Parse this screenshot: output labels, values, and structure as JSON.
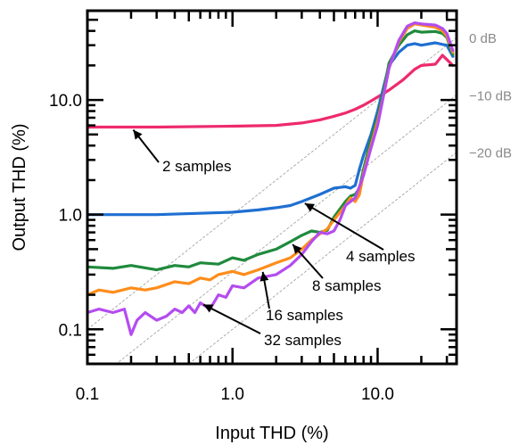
{
  "chart_data": {
    "type": "line",
    "title": "",
    "xlabel": "Input THD (%)",
    "ylabel": "Output THD (%)",
    "x_scale": "log",
    "y_scale": "log",
    "xlim": [
      0.1,
      35
    ],
    "ylim": [
      0.05,
      60
    ],
    "x_ticks": [
      {
        "value": 0.1,
        "label": "0.1"
      },
      {
        "value": 1,
        "label": "1.0"
      },
      {
        "value": 10,
        "label": "10.0"
      }
    ],
    "y_ticks": [
      {
        "value": 0.1,
        "label": "0.1"
      },
      {
        "value": 1,
        "label": "1.0"
      },
      {
        "value": 10,
        "label": "10.0"
      }
    ],
    "grid": false,
    "reference_lines": [
      {
        "label": "0 dB",
        "ratio": 1,
        "color": "#9a9a9a"
      },
      {
        "label": "−10 dB",
        "ratio": 0.316,
        "color": "#9a9a9a"
      },
      {
        "label": "−20 dB",
        "ratio": 0.1,
        "color": "#9a9a9a"
      }
    ],
    "series": [
      {
        "name": "2 samples",
        "color": "#ee2a6e",
        "x": [
          0.1,
          0.3,
          1,
          2,
          3,
          4,
          5,
          6,
          7,
          8,
          9,
          10,
          12,
          15,
          18,
          20,
          25,
          28,
          30,
          33
        ],
        "y": [
          5.8,
          5.8,
          5.9,
          6.0,
          6.3,
          6.7,
          7.2,
          7.7,
          8.3,
          9.0,
          9.8,
          10.6,
          12.2,
          15.0,
          18.5,
          20.0,
          20.5,
          24.5,
          22.5,
          20.0
        ]
      },
      {
        "name": "4 samples",
        "color": "#1f6fd1",
        "x": [
          0.1,
          0.3,
          1,
          1.5,
          2,
          2.5,
          3,
          4,
          5,
          6,
          6.5,
          7,
          7.5,
          8,
          9,
          10,
          11,
          12,
          14,
          16,
          18,
          20,
          25,
          28,
          30,
          33
        ],
        "y": [
          1.0,
          1.0,
          1.05,
          1.1,
          1.15,
          1.2,
          1.3,
          1.5,
          1.7,
          1.75,
          1.7,
          1.8,
          2.5,
          3.3,
          5.0,
          8.0,
          13.0,
          20.0,
          26.0,
          30.0,
          31.0,
          30.0,
          31.5,
          30.5,
          30.0,
          24.0
        ]
      },
      {
        "name": "8 samples",
        "color": "#1f8a3c",
        "x": [
          0.1,
          0.15,
          0.2,
          0.3,
          0.4,
          0.5,
          0.6,
          0.8,
          1,
          1.2,
          1.5,
          2,
          2.5,
          3,
          3.5,
          4,
          4.5,
          5,
          6,
          6.5,
          7,
          7.5,
          8,
          9,
          10,
          11,
          12,
          14,
          16,
          18,
          20,
          25,
          28,
          30,
          33
        ],
        "y": [
          0.35,
          0.34,
          0.36,
          0.33,
          0.36,
          0.35,
          0.38,
          0.37,
          0.42,
          0.4,
          0.45,
          0.5,
          0.58,
          0.66,
          0.72,
          0.7,
          0.73,
          0.95,
          1.3,
          1.45,
          1.5,
          1.7,
          2.5,
          4.5,
          7.0,
          12.0,
          21.0,
          30.0,
          37.0,
          40.0,
          39.0,
          39.5,
          38.0,
          35.0,
          25.0
        ]
      },
      {
        "name": "16 samples",
        "color": "#ff8c1a",
        "x": [
          0.1,
          0.12,
          0.15,
          0.2,
          0.25,
          0.3,
          0.4,
          0.5,
          0.6,
          0.7,
          0.8,
          1,
          1.2,
          1.5,
          2,
          2.5,
          3,
          3.5,
          4,
          4.5,
          5,
          6,
          6.5,
          7,
          7.5,
          8,
          9,
          10,
          11,
          12,
          14,
          16,
          18,
          20,
          25,
          28,
          30,
          33
        ],
        "y": [
          0.2,
          0.22,
          0.21,
          0.23,
          0.22,
          0.23,
          0.26,
          0.25,
          0.28,
          0.27,
          0.3,
          0.32,
          0.3,
          0.33,
          0.38,
          0.42,
          0.5,
          0.6,
          0.68,
          0.75,
          0.9,
          1.2,
          1.4,
          1.3,
          1.5,
          2.3,
          4.0,
          6.5,
          11.0,
          19.0,
          32.0,
          42.0,
          46.0,
          45.0,
          43.0,
          40.0,
          36.0,
          26.0
        ]
      },
      {
        "name": "32 samples",
        "color": "#b44cf0",
        "x": [
          0.1,
          0.12,
          0.15,
          0.18,
          0.2,
          0.22,
          0.25,
          0.3,
          0.35,
          0.4,
          0.45,
          0.5,
          0.55,
          0.6,
          0.7,
          0.8,
          0.9,
          1,
          1.2,
          1.5,
          2,
          2.5,
          3,
          3.5,
          4,
          4.5,
          5,
          5.5,
          6,
          7,
          8,
          9,
          10,
          11,
          12,
          14,
          16,
          18,
          20,
          25,
          28,
          30,
          33
        ],
        "y": [
          0.14,
          0.15,
          0.14,
          0.15,
          0.09,
          0.12,
          0.14,
          0.12,
          0.13,
          0.15,
          0.14,
          0.16,
          0.14,
          0.17,
          0.15,
          0.2,
          0.19,
          0.24,
          0.23,
          0.28,
          0.3,
          0.36,
          0.45,
          0.58,
          0.7,
          0.68,
          0.72,
          0.9,
          1.2,
          1.4,
          2.2,
          3.8,
          6.0,
          11.0,
          19.0,
          33.0,
          44.0,
          47.0,
          46.0,
          45.0,
          42.0,
          38.0,
          27.0
        ]
      }
    ],
    "annotations": [
      {
        "text": "2 samples",
        "points_to": [
          0.2,
          5.8
        ]
      },
      {
        "text": "4 samples",
        "points_to": [
          3.0,
          1.3
        ]
      },
      {
        "text": "8 samples",
        "points_to": [
          2.5,
          0.58
        ]
      },
      {
        "text": "16 samples",
        "points_to": [
          1.6,
          0.34
        ]
      },
      {
        "text": "32 samples",
        "points_to": [
          0.6,
          0.17
        ]
      }
    ]
  }
}
